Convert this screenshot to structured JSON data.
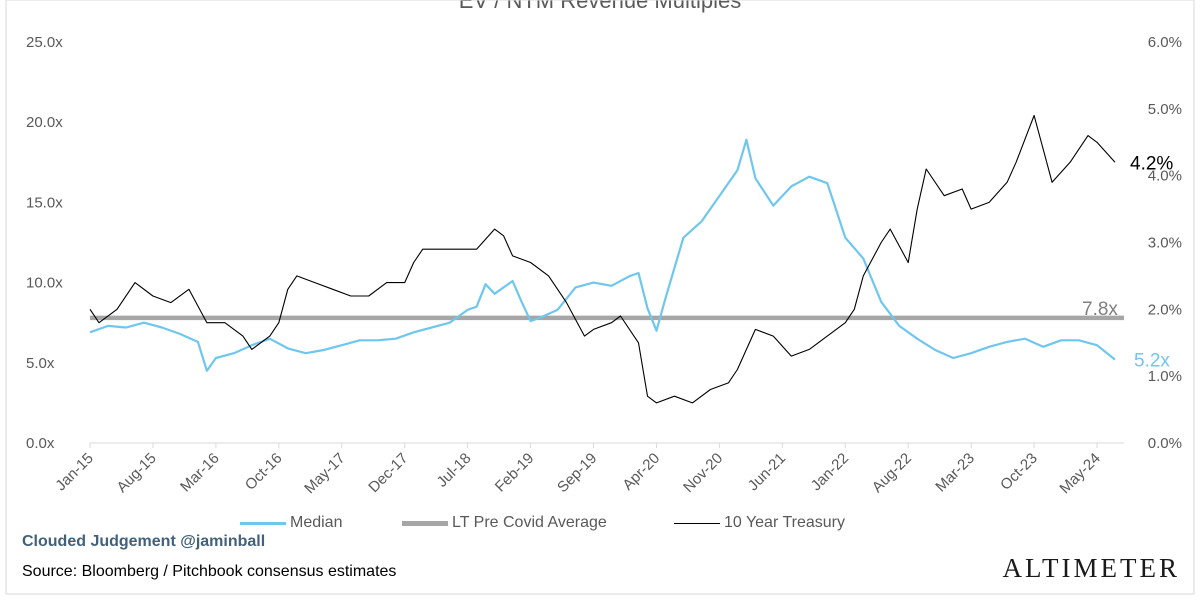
{
  "chart_data": {
    "type": "line",
    "title": "EV / NTM Revenue Multiples",
    "x_tick_labels": [
      "Jan-15",
      "Aug-15",
      "Mar-16",
      "Oct-16",
      "May-17",
      "Dec-17",
      "Jul-18",
      "Feb-19",
      "Sep-19",
      "Apr-20",
      "Nov-20",
      "Jun-21",
      "Jan-22",
      "Aug-22",
      "Mar-23",
      "Oct-23",
      "May-24"
    ],
    "x_range": [
      "2015-01",
      "2024-08"
    ],
    "y_left": {
      "ticks": [
        "0.0x",
        "5.0x",
        "10.0x",
        "15.0x",
        "20.0x",
        "25.0x"
      ],
      "ylim": [
        0,
        25
      ]
    },
    "y_right": {
      "ticks": [
        "0.0%",
        "1.0%",
        "2.0%",
        "3.0%",
        "4.0%",
        "5.0%",
        "6.0%"
      ],
      "ylim": [
        0,
        6
      ]
    },
    "series": [
      {
        "name": "Median",
        "axis": "left",
        "color": "#6fc6ee",
        "end_label": "5.2x",
        "points": [
          [
            "2015-01",
            6.9
          ],
          [
            "2015-03",
            7.3
          ],
          [
            "2015-05",
            7.2
          ],
          [
            "2015-07",
            7.5
          ],
          [
            "2015-09",
            7.2
          ],
          [
            "2015-11",
            6.8
          ],
          [
            "2016-01",
            6.3
          ],
          [
            "2016-02",
            4.5
          ],
          [
            "2016-03",
            5.3
          ],
          [
            "2016-05",
            5.6
          ],
          [
            "2016-07",
            6.1
          ],
          [
            "2016-09",
            6.5
          ],
          [
            "2016-11",
            5.9
          ],
          [
            "2017-01",
            5.6
          ],
          [
            "2017-03",
            5.8
          ],
          [
            "2017-05",
            6.1
          ],
          [
            "2017-07",
            6.4
          ],
          [
            "2017-09",
            6.4
          ],
          [
            "2017-11",
            6.5
          ],
          [
            "2018-01",
            6.9
          ],
          [
            "2018-03",
            7.2
          ],
          [
            "2018-05",
            7.5
          ],
          [
            "2018-07",
            8.3
          ],
          [
            "2018-08",
            8.5
          ],
          [
            "2018-09",
            9.9
          ],
          [
            "2018-10",
            9.3
          ],
          [
            "2018-12",
            10.1
          ],
          [
            "2019-01",
            8.8
          ],
          [
            "2019-02",
            7.6
          ],
          [
            "2019-03",
            7.8
          ],
          [
            "2019-05",
            8.3
          ],
          [
            "2019-07",
            9.7
          ],
          [
            "2019-09",
            10.0
          ],
          [
            "2019-11",
            9.8
          ],
          [
            "2020-01",
            10.4
          ],
          [
            "2020-02",
            10.6
          ],
          [
            "2020-03",
            8.4
          ],
          [
            "2020-04",
            7.0
          ],
          [
            "2020-05",
            9.0
          ],
          [
            "2020-07",
            12.8
          ],
          [
            "2020-09",
            13.8
          ],
          [
            "2020-11",
            15.4
          ],
          [
            "2021-01",
            17.0
          ],
          [
            "2021-02",
            18.9
          ],
          [
            "2021-03",
            16.5
          ],
          [
            "2021-05",
            14.8
          ],
          [
            "2021-07",
            16.0
          ],
          [
            "2021-09",
            16.6
          ],
          [
            "2021-11",
            16.2
          ],
          [
            "2021-12",
            14.5
          ],
          [
            "2022-01",
            12.8
          ],
          [
            "2022-03",
            11.5
          ],
          [
            "2022-05",
            8.8
          ],
          [
            "2022-07",
            7.3
          ],
          [
            "2022-09",
            6.5
          ],
          [
            "2022-11",
            5.8
          ],
          [
            "2023-01",
            5.3
          ],
          [
            "2023-03",
            5.6
          ],
          [
            "2023-05",
            6.0
          ],
          [
            "2023-07",
            6.3
          ],
          [
            "2023-09",
            6.5
          ],
          [
            "2023-11",
            6.0
          ],
          [
            "2024-01",
            6.4
          ],
          [
            "2024-03",
            6.4
          ],
          [
            "2024-05",
            6.1
          ],
          [
            "2024-07",
            5.2
          ]
        ]
      },
      {
        "name": "LT Pre Covid Average",
        "axis": "left",
        "color": "#a6a6a6",
        "end_label": "7.8x",
        "points": [
          [
            "2015-01",
            7.8
          ],
          [
            "2024-08",
            7.8
          ]
        ]
      },
      {
        "name": "10 Year Treasury",
        "axis": "right",
        "color": "#000000",
        "end_label": "4.2%",
        "points": [
          [
            "2015-01",
            2.0
          ],
          [
            "2015-02",
            1.8
          ],
          [
            "2015-04",
            2.0
          ],
          [
            "2015-06",
            2.4
          ],
          [
            "2015-08",
            2.2
          ],
          [
            "2015-10",
            2.1
          ],
          [
            "2015-12",
            2.3
          ],
          [
            "2016-02",
            1.8
          ],
          [
            "2016-04",
            1.8
          ],
          [
            "2016-06",
            1.6
          ],
          [
            "2016-07",
            1.4
          ],
          [
            "2016-09",
            1.6
          ],
          [
            "2016-10",
            1.8
          ],
          [
            "2016-11",
            2.3
          ],
          [
            "2016-12",
            2.5
          ],
          [
            "2017-02",
            2.4
          ],
          [
            "2017-04",
            2.3
          ],
          [
            "2017-06",
            2.2
          ],
          [
            "2017-08",
            2.2
          ],
          [
            "2017-10",
            2.4
          ],
          [
            "2017-12",
            2.4
          ],
          [
            "2018-01",
            2.7
          ],
          [
            "2018-02",
            2.9
          ],
          [
            "2018-04",
            2.9
          ],
          [
            "2018-06",
            2.9
          ],
          [
            "2018-08",
            2.9
          ],
          [
            "2018-10",
            3.2
          ],
          [
            "2018-11",
            3.1
          ],
          [
            "2018-12",
            2.8
          ],
          [
            "2019-02",
            2.7
          ],
          [
            "2019-04",
            2.5
          ],
          [
            "2019-06",
            2.1
          ],
          [
            "2019-08",
            1.6
          ],
          [
            "2019-09",
            1.7
          ],
          [
            "2019-11",
            1.8
          ],
          [
            "2019-12",
            1.9
          ],
          [
            "2020-02",
            1.5
          ],
          [
            "2020-03",
            0.7
          ],
          [
            "2020-04",
            0.6
          ],
          [
            "2020-06",
            0.7
          ],
          [
            "2020-08",
            0.6
          ],
          [
            "2020-10",
            0.8
          ],
          [
            "2020-12",
            0.9
          ],
          [
            "2021-01",
            1.1
          ],
          [
            "2021-03",
            1.7
          ],
          [
            "2021-05",
            1.6
          ],
          [
            "2021-07",
            1.3
          ],
          [
            "2021-09",
            1.4
          ],
          [
            "2021-11",
            1.6
          ],
          [
            "2022-01",
            1.8
          ],
          [
            "2022-02",
            2.0
          ],
          [
            "2022-03",
            2.5
          ],
          [
            "2022-05",
            3.0
          ],
          [
            "2022-06",
            3.2
          ],
          [
            "2022-08",
            2.7
          ],
          [
            "2022-09",
            3.5
          ],
          [
            "2022-10",
            4.1
          ],
          [
            "2022-12",
            3.7
          ],
          [
            "2023-02",
            3.8
          ],
          [
            "2023-03",
            3.5
          ],
          [
            "2023-05",
            3.6
          ],
          [
            "2023-07",
            3.9
          ],
          [
            "2023-08",
            4.2
          ],
          [
            "2023-10",
            4.9
          ],
          [
            "2023-11",
            4.4
          ],
          [
            "2023-12",
            3.9
          ],
          [
            "2024-02",
            4.2
          ],
          [
            "2024-04",
            4.6
          ],
          [
            "2024-05",
            4.5
          ],
          [
            "2024-07",
            4.2
          ]
        ]
      }
    ],
    "legend": {
      "placement": "bottom"
    },
    "grid": false
  },
  "footer": {
    "watermark": "Clouded Judgement @jaminball",
    "source": "Source: Bloomberg / Pitchbook consensus estimates",
    "brand": "ALTIMETER"
  }
}
